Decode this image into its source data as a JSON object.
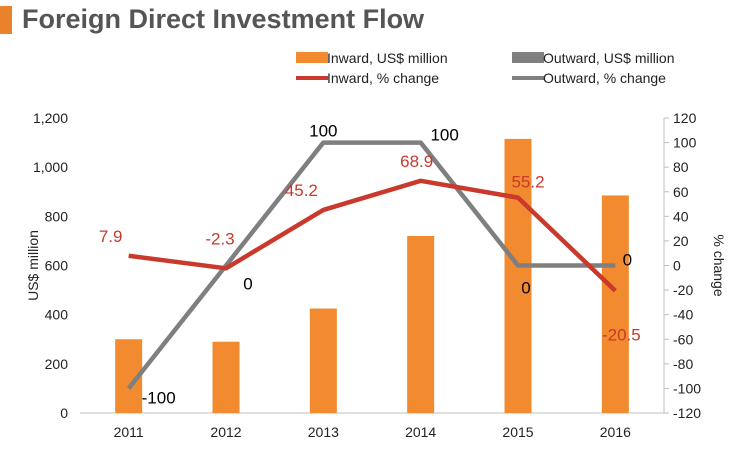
{
  "header": {
    "title": "Foreign Direct Investment Flow"
  },
  "colors": {
    "inward": "#f28b30",
    "outward": "#7f7f7f",
    "inward_change": "#c9392c",
    "accent": "#e8822b"
  },
  "chart_data": {
    "type": "bar",
    "title": "Foreign Direct Investment Flow",
    "categories": [
      "2011",
      "2012",
      "2013",
      "2014",
      "2015",
      "2016"
    ],
    "ylabel": "US$ million",
    "y2label": "% change",
    "ylim": [
      0,
      1200
    ],
    "y2lim": [
      -120,
      120
    ],
    "yticks": [
      "0",
      "200",
      "400",
      "600",
      "800",
      "1,000",
      "1,200"
    ],
    "y2ticks": [
      "-120",
      "-100",
      "-80",
      "-60",
      "-40",
      "-20",
      "0",
      "20",
      "40",
      "60",
      "80",
      "100",
      "120"
    ],
    "legend_position": "top",
    "series": [
      {
        "name": "Inward, US$ million",
        "type": "bar",
        "axis": "left",
        "values": [
          300,
          290,
          425,
          720,
          1115,
          885
        ]
      },
      {
        "name": "Outward, US$ million",
        "type": "bar",
        "axis": "left",
        "values": [
          0,
          0,
          0,
          0,
          0,
          0
        ]
      },
      {
        "name": "Inward, % change",
        "type": "line",
        "axis": "right",
        "values": [
          7.9,
          -2.3,
          45.2,
          68.9,
          55.2,
          -20.5
        ],
        "labels": [
          "7.9",
          "-2.3",
          "45.2",
          "68.9",
          "55.2",
          "-20.5"
        ]
      },
      {
        "name": "Outward, % change",
        "type": "line",
        "axis": "right",
        "values": [
          -100,
          0,
          100,
          100,
          0,
          0
        ],
        "labels": [
          "-100",
          "0",
          "100",
          "100",
          "0",
          "0"
        ]
      }
    ]
  }
}
